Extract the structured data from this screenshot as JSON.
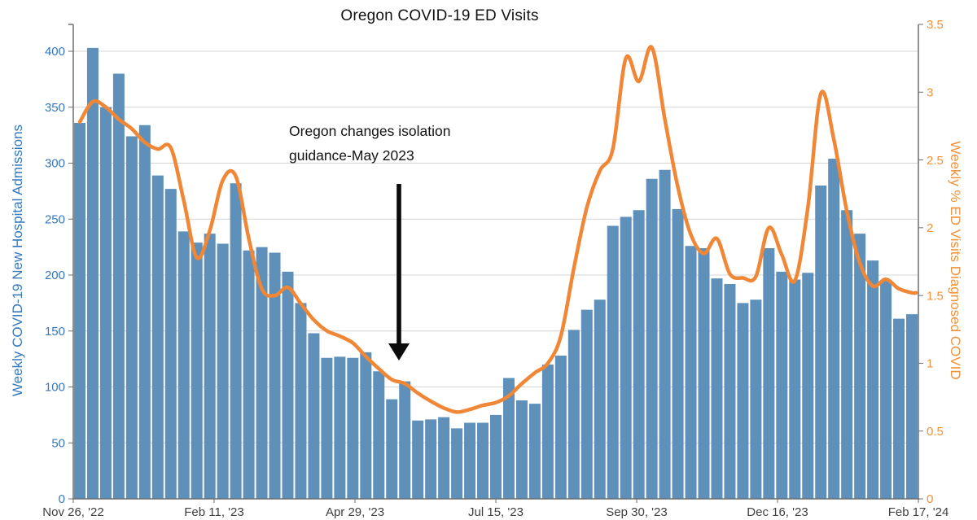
{
  "title": "Oregon COVID-19 ED Visits",
  "annotation": {
    "line1": "Oregon changes isolation",
    "line2": "guidance-May 2023"
  },
  "axes": {
    "left": {
      "label": "Weekly COVID-19 New Hospital Admissions",
      "tick_labels": [
        "0",
        "50",
        "100",
        "150",
        "200",
        "250",
        "300",
        "350",
        "400"
      ],
      "tick_values": [
        0,
        50,
        100,
        150,
        200,
        250,
        300,
        350,
        400
      ],
      "max": 424
    },
    "right": {
      "label": "Weekly % ED Visits Diagnosed COVID",
      "tick_labels": [
        "0",
        "0.5",
        "1",
        "1.5",
        "2",
        "2.5",
        "3",
        "3.5"
      ],
      "tick_values": [
        0,
        0.5,
        1,
        1.5,
        2,
        2.5,
        3,
        3.5
      ],
      "max": 3.5
    },
    "x": {
      "tick_labels": [
        "Nov 26, '22",
        "Feb 11, '23",
        "Apr 29, '23",
        "Jul 15, '23",
        "Sep 30, '23",
        "Dec 16, '23",
        "Feb 17, '24"
      ]
    }
  },
  "colors": {
    "bar": "#5e90ba",
    "line": "#f08736",
    "left_text": "#3478bd",
    "right_text": "#f0923a",
    "x_text": "#3f3f3f",
    "grid": "#d4d4d4",
    "axis": "#6e6e6e",
    "annotation_text": "#121212",
    "arrow": "#0b0b0b"
  },
  "chart_data": {
    "type": "bar",
    "title": "Oregon COVID-19 ED Visits",
    "x_tick_labels": [
      "Nov 26, '22",
      "Feb 11, '23",
      "Apr 29, '23",
      "Jul 15, '23",
      "Sep 30, '23",
      "Dec 16, '23",
      "Feb 17, '24"
    ],
    "weeks_per_tick": 11,
    "grid": "horizontal-only",
    "legend": "none",
    "ylim_left": [
      0,
      424
    ],
    "ylim_right": [
      0,
      3.5
    ],
    "series": [
      {
        "name": "Weekly COVID-19 New Hospital Admissions",
        "type": "bar",
        "axis": "left",
        "values": [
          336,
          403,
          350,
          380,
          324,
          334,
          289,
          277,
          239,
          229,
          237,
          228,
          282,
          222,
          225,
          220,
          203,
          175,
          148,
          126,
          127,
          126,
          131,
          114,
          89,
          105,
          70,
          71,
          73,
          63,
          68,
          68,
          75,
          108,
          88,
          85,
          120,
          128,
          151,
          169,
          178,
          244,
          252,
          258,
          286,
          294,
          259,
          226,
          224,
          197,
          192,
          175,
          178,
          224,
          203,
          196,
          202,
          280,
          304,
          258,
          237,
          213,
          195,
          161,
          165
        ]
      },
      {
        "name": "Weekly % ED Visits Diagnosed COVID",
        "type": "line",
        "axis": "right",
        "values": [
          2.78,
          2.93,
          2.89,
          2.8,
          2.73,
          2.63,
          2.58,
          2.59,
          2.2,
          1.78,
          1.98,
          2.35,
          2.38,
          1.92,
          1.55,
          1.5,
          1.56,
          1.44,
          1.32,
          1.24,
          1.2,
          1.15,
          1.05,
          0.96,
          0.88,
          0.85,
          0.78,
          0.72,
          0.67,
          0.64,
          0.66,
          0.69,
          0.71,
          0.76,
          0.85,
          0.93,
          1.0,
          1.2,
          1.7,
          2.15,
          2.42,
          2.58,
          3.25,
          3.08,
          3.33,
          2.8,
          2.3,
          1.95,
          1.81,
          1.92,
          1.66,
          1.63,
          1.64,
          2.0,
          1.8,
          1.61,
          2.15,
          2.99,
          2.65,
          2.12,
          1.74,
          1.57,
          1.62,
          1.55,
          1.52
        ]
      }
    ],
    "annotation": {
      "text": "Oregon changes isolation guidance-May 2023",
      "arrow_points_to": "week of 2023-05-20 bars"
    }
  }
}
